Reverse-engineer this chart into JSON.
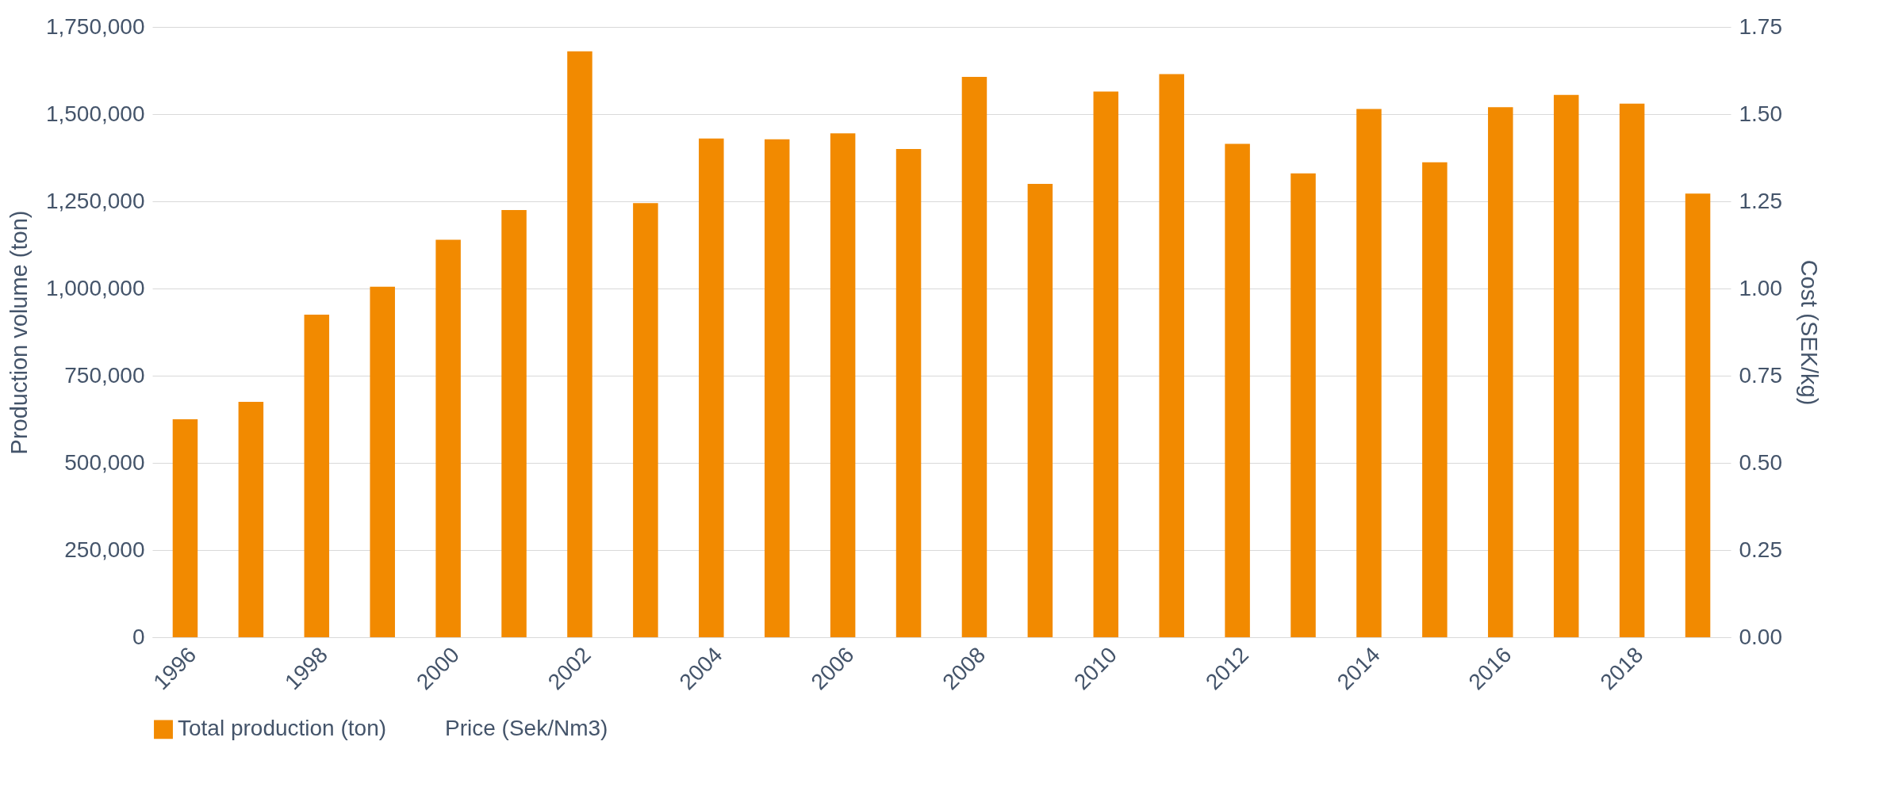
{
  "chart_data": {
    "type": "bar",
    "categories": [
      "1996",
      null,
      "1998",
      null,
      "2000",
      null,
      "2002",
      null,
      "2004",
      null,
      "2006",
      null,
      "2008",
      null,
      "2010",
      null,
      "2012",
      null,
      "2014",
      null,
      "2016",
      null,
      "2018",
      null
    ],
    "series": [
      {
        "name": "Total production (ton)",
        "color": "#f28a00",
        "values": [
          625000,
          675000,
          925000,
          1005000,
          1140000,
          1225000,
          1680000,
          1245000,
          1430000,
          1428000,
          1445000,
          1400000,
          1607000,
          1300000,
          1565000,
          1615000,
          1415000,
          1330000,
          1515000,
          1362000,
          1520000,
          1555000,
          1530000,
          1272000
        ]
      },
      {
        "name": "Price (Sek/Nm3)",
        "type": "line",
        "axis": "y2",
        "values": [
          null,
          null,
          null,
          null,
          null,
          null,
          null,
          null,
          null,
          null,
          null,
          null,
          null,
          null,
          null,
          null,
          null,
          null,
          null,
          null,
          null,
          null,
          null,
          null
        ]
      }
    ],
    "ylabel": "Production volume (ton)",
    "y2label": "Cost (SEK/kg)",
    "ylim": [
      0,
      1750000
    ],
    "yticks": [
      {
        "value": 0,
        "label": "0"
      },
      {
        "value": 250000,
        "label": "250,000"
      },
      {
        "value": 500000,
        "label": "500,000"
      },
      {
        "value": 750000,
        "label": "750,000"
      },
      {
        "value": 1000000,
        "label": "1,000,000"
      },
      {
        "value": 1250000,
        "label": "1,250,000"
      },
      {
        "value": 1500000,
        "label": "1,500,000"
      },
      {
        "value": 1750000,
        "label": "1,750,000"
      }
    ],
    "y2lim": [
      0,
      1.75
    ],
    "y2ticks": [
      {
        "value": 0,
        "label": "0.00"
      },
      {
        "value": 0.25,
        "label": "0.25"
      },
      {
        "value": 0.5,
        "label": "0.50"
      },
      {
        "value": 0.75,
        "label": "0.75"
      },
      {
        "value": 1,
        "label": "1.00"
      },
      {
        "value": 1.25,
        "label": "1.25"
      },
      {
        "value": 1.5,
        "label": "1.50"
      },
      {
        "value": 1.75,
        "label": "1.75"
      }
    ],
    "grid": "y",
    "legend": "bottom"
  }
}
